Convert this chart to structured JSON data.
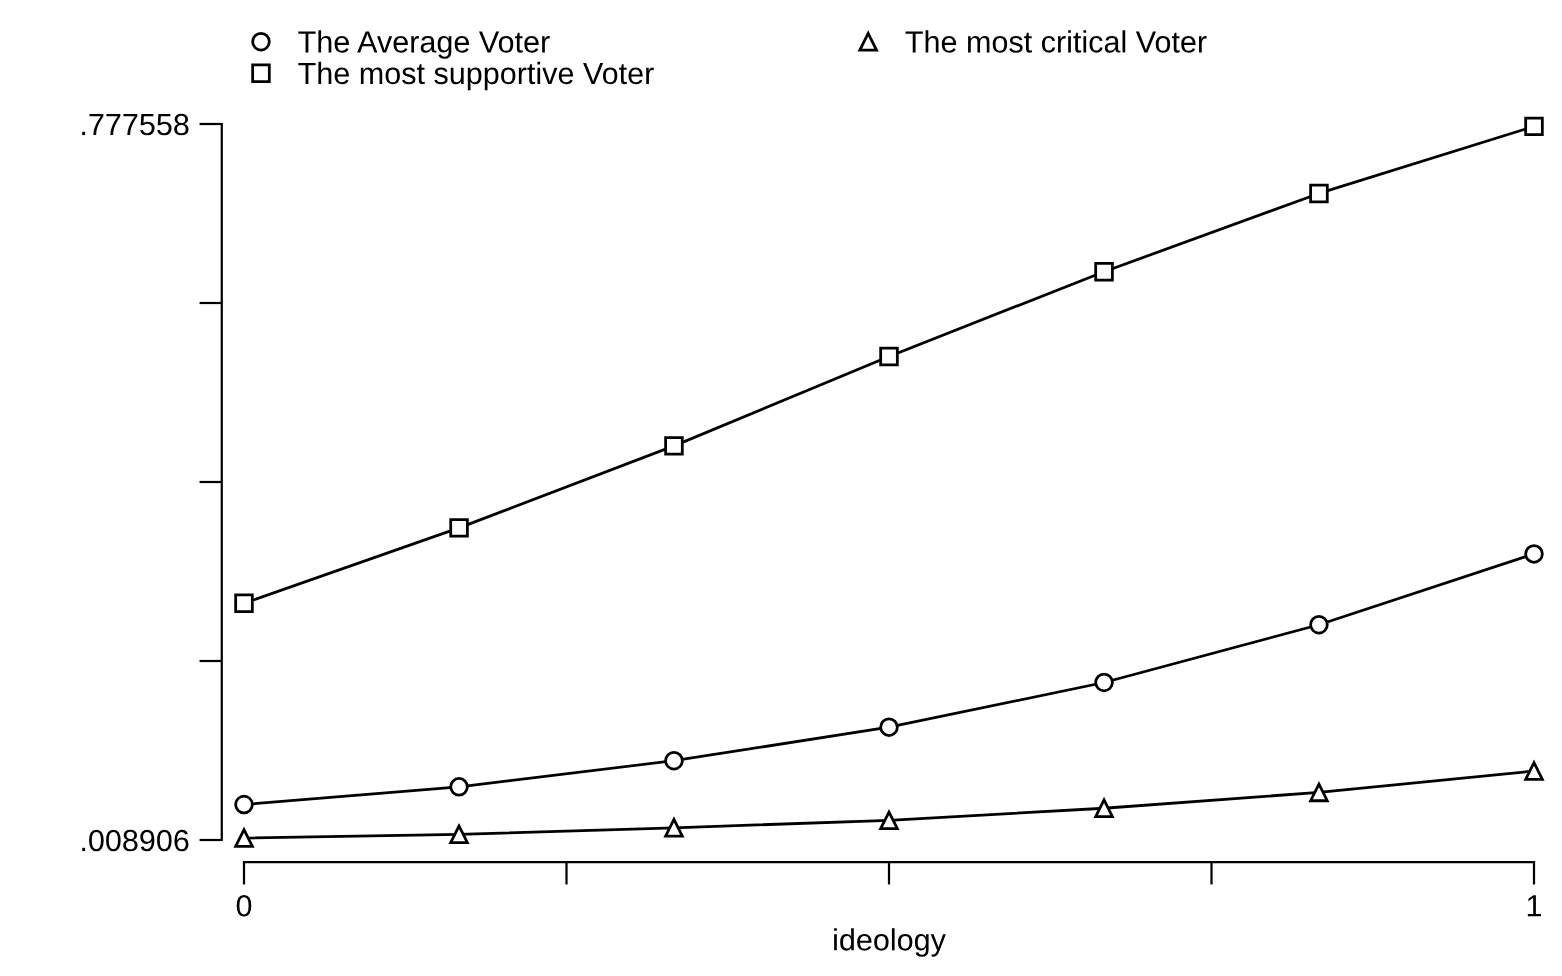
{
  "chart_data": {
    "type": "line",
    "xlabel": "ideology",
    "x": [
      0,
      0.1667,
      0.3333,
      0.5,
      0.6667,
      0.8333,
      1
    ],
    "series": [
      {
        "name": "The Average Voter",
        "color": "#000000",
        "marker": "circle",
        "values": [
          0.047,
          0.066,
          0.094,
          0.13,
          0.178,
          0.24,
          0.316
        ]
      },
      {
        "name": "The most supportive Voter",
        "color": "#000000",
        "marker": "square",
        "values": [
          0.263,
          0.344,
          0.432,
          0.528,
          0.619,
          0.703,
          0.775
        ]
      },
      {
        "name": "The most critical Voter",
        "color": "#000000",
        "marker": "triangle",
        "values": [
          0.011,
          0.015,
          0.022,
          0.03,
          0.043,
          0.06,
          0.083
        ]
      }
    ],
    "xlim": [
      0,
      1
    ],
    "xticks": [
      0,
      {
        "value": 0.25,
        "label": null
      },
      {
        "value": 0.5,
        "label": null
      },
      {
        "value": 0.75,
        "label": null
      },
      1
    ],
    "ylim": [
      0.008906,
      0.777558
    ],
    "yticks": [
      {
        "value": 0.008906,
        "label": ".008906"
      },
      {
        "value": 0.201069,
        "label": null
      },
      {
        "value": 0.393232,
        "label": null
      },
      {
        "value": 0.585395,
        "label": null
      },
      {
        "value": 0.777558,
        "label": ".777558"
      }
    ],
    "legend": "top",
    "grid": false,
    "line_style": "solid"
  }
}
